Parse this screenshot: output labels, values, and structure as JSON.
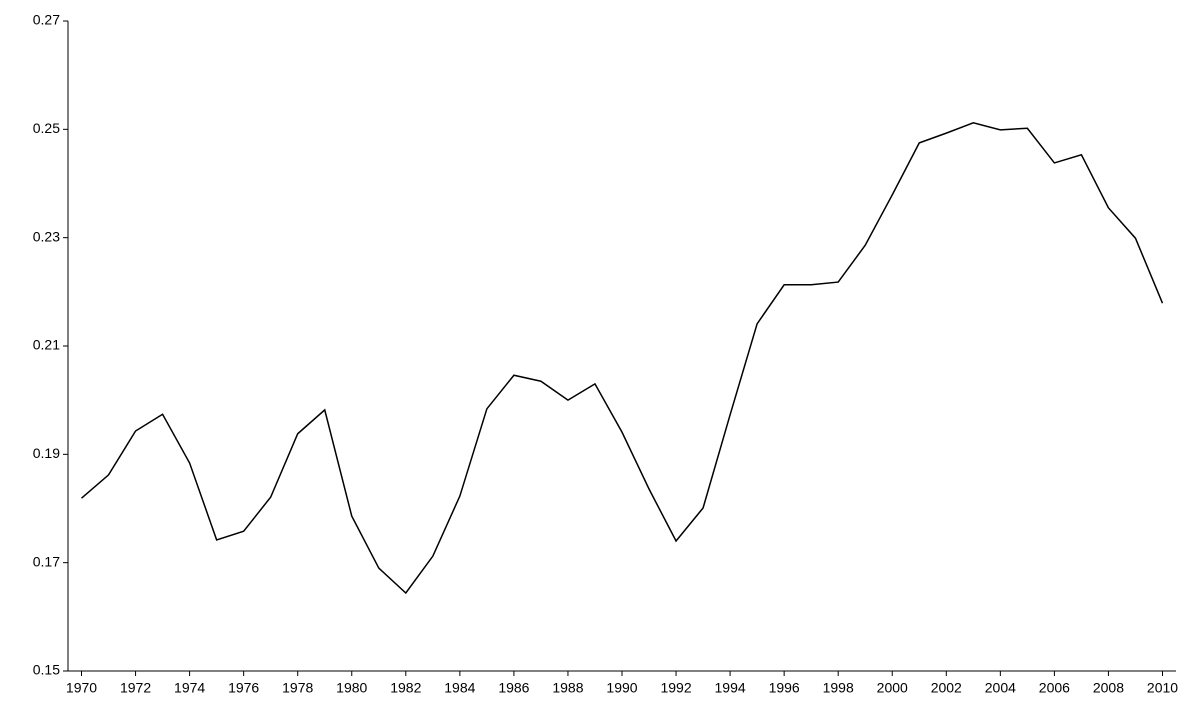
{
  "chart_data": {
    "type": "line",
    "x": [
      1970,
      1971,
      1972,
      1973,
      1974,
      1975,
      1976,
      1977,
      1978,
      1979,
      1980,
      1981,
      1982,
      1983,
      1984,
      1985,
      1986,
      1987,
      1988,
      1989,
      1990,
      1991,
      1992,
      1993,
      1994,
      1995,
      1996,
      1997,
      1998,
      1999,
      2000,
      2001,
      2002,
      2003,
      2004,
      2005,
      2006,
      2007,
      2008,
      2009,
      2010
    ],
    "series": [
      {
        "color": "#000000",
        "values": [
          0.1819,
          0.1862,
          0.1943,
          0.1974,
          0.1884,
          0.1742,
          0.1758,
          0.1821,
          0.1938,
          0.1982,
          0.1786,
          0.169,
          0.1644,
          0.1712,
          0.1823,
          0.1984,
          0.2046,
          0.2035,
          0.2,
          0.203,
          0.1941,
          0.1836,
          0.174,
          0.1801,
          0.1973,
          0.2141,
          0.2213,
          0.2213,
          0.2218,
          0.2286,
          0.2379,
          0.2475,
          0.2493,
          0.2512,
          0.2499,
          0.2502,
          0.2438,
          0.2453,
          0.2355,
          0.2299,
          0.2179
        ]
      }
    ],
    "xlim": [
      1969.5,
      2010.5
    ],
    "xticks": [
      1970,
      1972,
      1974,
      1976,
      1978,
      1980,
      1982,
      1984,
      1986,
      1988,
      1990,
      1992,
      1994,
      1996,
      1998,
      2000,
      2002,
      2004,
      2006,
      2008,
      2010
    ],
    "ylim": [
      0.15,
      0.27
    ],
    "yticks": [
      0.15,
      0.17,
      0.19,
      0.21,
      0.23,
      0.25,
      0.27
    ],
    "grid": false
  }
}
